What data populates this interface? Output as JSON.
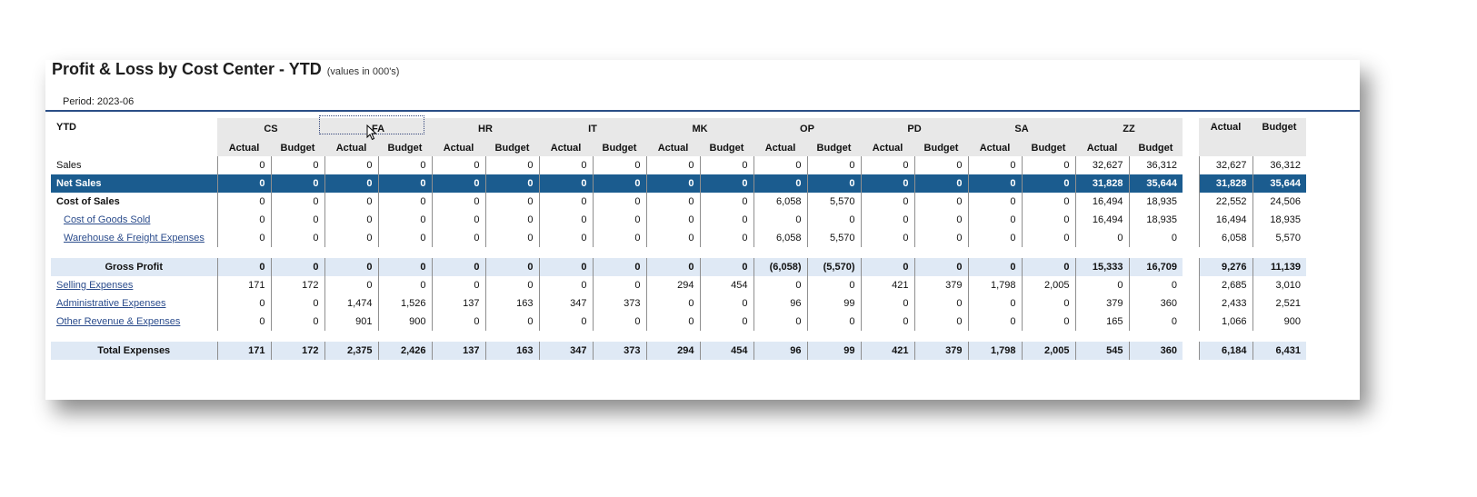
{
  "report": {
    "title": "Profit & Loss by Cost Center - YTD",
    "units_note": "(values in 000's)",
    "period": "Period: 2023-06"
  },
  "header": {
    "corner_label": "YTD",
    "cost_centers": [
      "CS",
      "FA",
      "HR",
      "IT",
      "MK",
      "OP",
      "PD",
      "SA",
      "ZZ"
    ],
    "sub_actual": "Actual",
    "sub_budget": "Budget",
    "total_actual": "Actual",
    "total_budget": "Budget"
  },
  "rows": [
    {
      "label": "Sales",
      "values": [
        "0",
        "0",
        "0",
        "0",
        "0",
        "0",
        "0",
        "0",
        "0",
        "0",
        "0",
        "0",
        "0",
        "0",
        "0",
        "0",
        "32,627",
        "36,312"
      ],
      "total": [
        "32,627",
        "36,312"
      ]
    },
    {
      "label": "Net Sales",
      "values": [
        "0",
        "0",
        "0",
        "0",
        "0",
        "0",
        "0",
        "0",
        "0",
        "0",
        "0",
        "0",
        "0",
        "0",
        "0",
        "0",
        "31,828",
        "35,644"
      ],
      "total": [
        "31,828",
        "35,644"
      ]
    },
    {
      "label": "Cost of Sales",
      "values": [
        "0",
        "0",
        "0",
        "0",
        "0",
        "0",
        "0",
        "0",
        "0",
        "0",
        "6,058",
        "5,570",
        "0",
        "0",
        "0",
        "0",
        "16,494",
        "18,935"
      ],
      "total": [
        "22,552",
        "24,506"
      ]
    },
    {
      "label": "Cost of Goods Sold",
      "values": [
        "0",
        "0",
        "0",
        "0",
        "0",
        "0",
        "0",
        "0",
        "0",
        "0",
        "0",
        "0",
        "0",
        "0",
        "0",
        "0",
        "16,494",
        "18,935"
      ],
      "total": [
        "16,494",
        "18,935"
      ]
    },
    {
      "label": "Warehouse & Freight Expenses",
      "values": [
        "0",
        "0",
        "0",
        "0",
        "0",
        "0",
        "0",
        "0",
        "0",
        "0",
        "6,058",
        "5,570",
        "0",
        "0",
        "0",
        "0",
        "0",
        "0"
      ],
      "total": [
        "6,058",
        "5,570"
      ]
    },
    {
      "label": "Gross Profit",
      "values": [
        "0",
        "0",
        "0",
        "0",
        "0",
        "0",
        "0",
        "0",
        "0",
        "0",
        "(6,058)",
        "(5,570)",
        "0",
        "0",
        "0",
        "0",
        "15,333",
        "16,709"
      ],
      "total": [
        "9,276",
        "11,139"
      ]
    },
    {
      "label": "Selling Expenses",
      "values": [
        "171",
        "172",
        "0",
        "0",
        "0",
        "0",
        "0",
        "0",
        "294",
        "454",
        "0",
        "0",
        "421",
        "379",
        "1,798",
        "2,005",
        "0",
        "0"
      ],
      "total": [
        "2,685",
        "3,010"
      ]
    },
    {
      "label": "Administrative Expenses",
      "values": [
        "0",
        "0",
        "1,474",
        "1,526",
        "137",
        "163",
        "347",
        "373",
        "0",
        "0",
        "96",
        "99",
        "0",
        "0",
        "0",
        "0",
        "379",
        "360"
      ],
      "total": [
        "2,433",
        "2,521"
      ]
    },
    {
      "label": "Other Revenue & Expenses",
      "values": [
        "0",
        "0",
        "901",
        "900",
        "0",
        "0",
        "0",
        "0",
        "0",
        "0",
        "0",
        "0",
        "0",
        "0",
        "0",
        "0",
        "165",
        "0"
      ],
      "total": [
        "1,066",
        "900"
      ]
    },
    {
      "label": "Total Expenses",
      "values": [
        "171",
        "172",
        "2,375",
        "2,426",
        "137",
        "163",
        "347",
        "373",
        "294",
        "454",
        "96",
        "99",
        "421",
        "379",
        "1,798",
        "2,005",
        "545",
        "360"
      ],
      "total": [
        "6,184",
        "6,431"
      ]
    }
  ],
  "icons": {
    "cursor": "mouse-pointer-icon"
  },
  "colors": {
    "net_sales_bg": "#1b5c8f",
    "subtotal_bg": "#dfe9f5",
    "header_bg": "#e8e8e8",
    "link": "#2b4c8c",
    "rule": "#2a4e86"
  }
}
